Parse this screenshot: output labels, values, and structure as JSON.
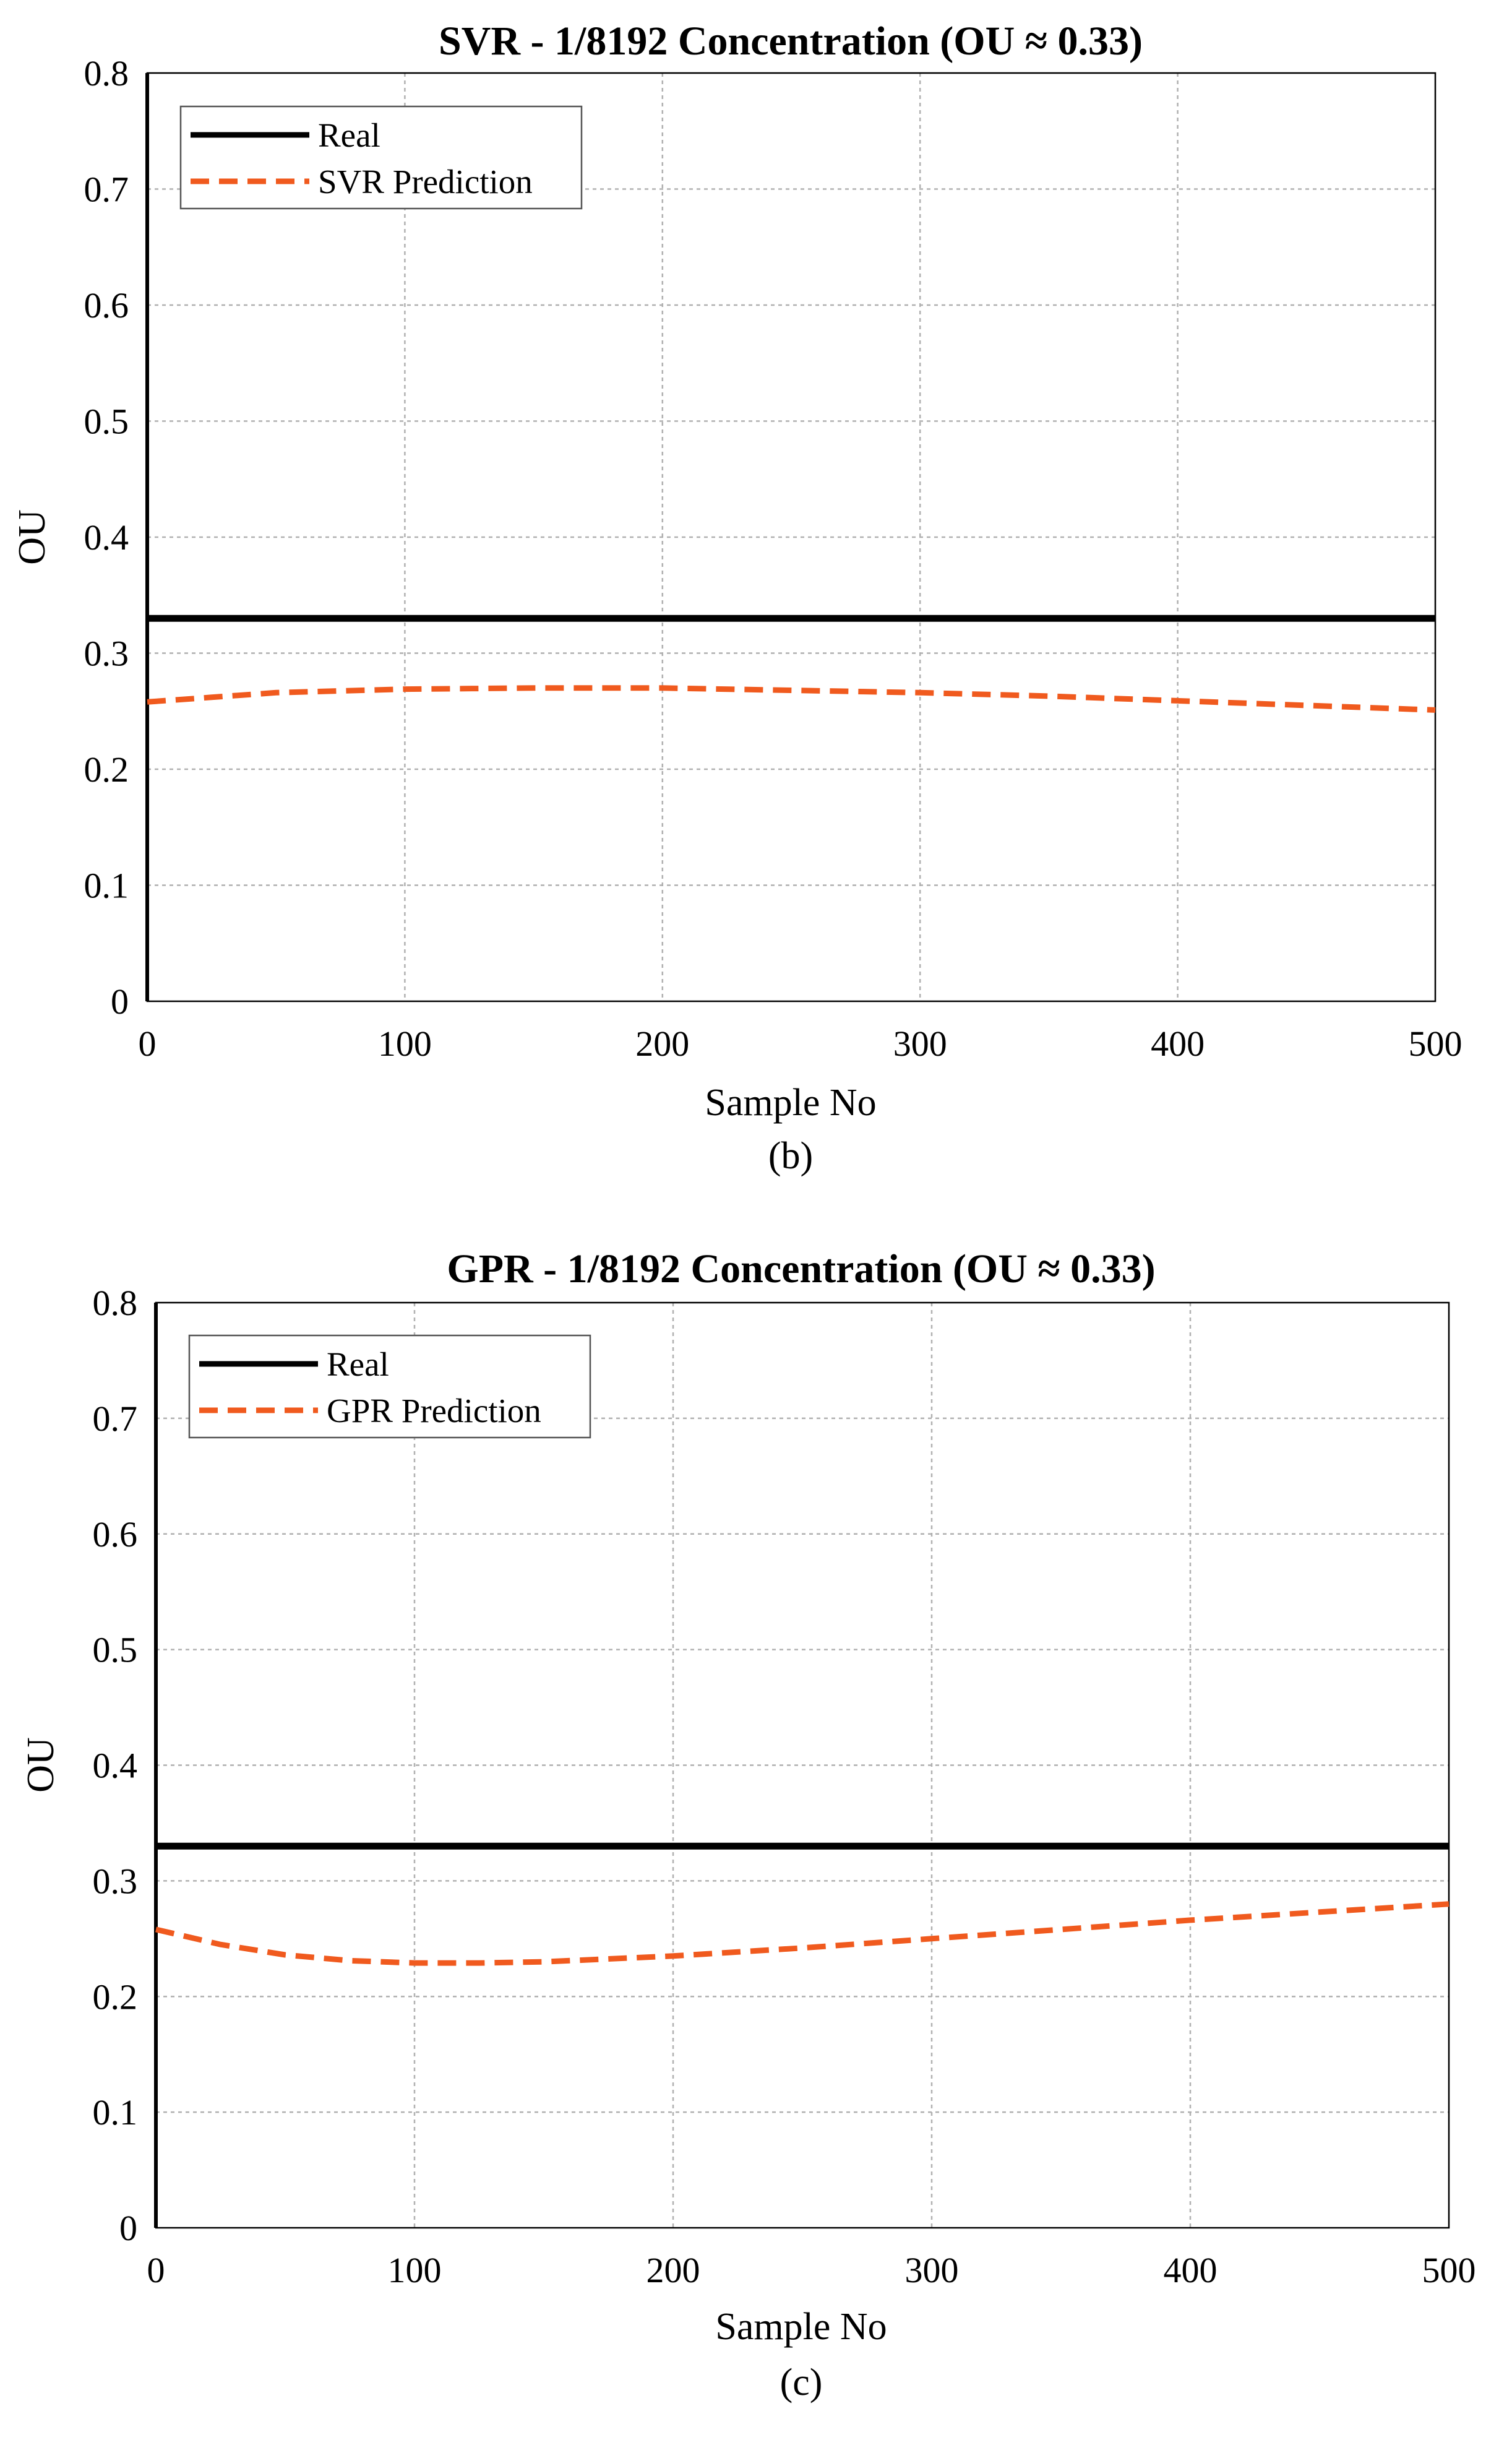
{
  "colors": {
    "real": "#000000",
    "prediction": "#f05a1e"
  },
  "chart_data": [
    {
      "type": "line",
      "title": "SVR - 1/8192 Concentration (OU ≈ 0.33)",
      "xlabel": "Sample No",
      "ylabel": "OU",
      "sublabel": "(b)",
      "xlim": [
        0,
        500
      ],
      "ylim": [
        0,
        0.8
      ],
      "xticks": [
        0,
        100,
        200,
        300,
        400,
        500
      ],
      "yticks": [
        0,
        0.1,
        0.2,
        0.3,
        0.4,
        0.5,
        0.6,
        0.7,
        0.8
      ],
      "ytick_labels": [
        "0",
        "0.1",
        "0.2",
        "0.3",
        "0.4",
        "0.5",
        "0.6",
        "0.7",
        "0.8"
      ],
      "grid": true,
      "legend_position": "top-left",
      "series": [
        {
          "name": "Real",
          "style": "solid",
          "color": "#000000",
          "x": [
            0,
            500
          ],
          "y": [
            0.33,
            0.33
          ]
        },
        {
          "name": "SVR Prediction",
          "style": "dashed",
          "color": "#f05a1e",
          "x": [
            0,
            25,
            50,
            100,
            150,
            200,
            250,
            300,
            350,
            400,
            450,
            500
          ],
          "y": [
            0.258,
            0.262,
            0.266,
            0.269,
            0.27,
            0.27,
            0.268,
            0.266,
            0.263,
            0.259,
            0.255,
            0.251
          ]
        }
      ]
    },
    {
      "type": "line",
      "title": "GPR - 1/8192 Concentration (OU ≈ 0.33)",
      "xlabel": "Sample No",
      "ylabel": "OU",
      "sublabel": "(c)",
      "xlim": [
        0,
        500
      ],
      "ylim": [
        0,
        0.8
      ],
      "xticks": [
        0,
        100,
        200,
        300,
        400,
        500
      ],
      "yticks": [
        0,
        0.1,
        0.2,
        0.3,
        0.4,
        0.5,
        0.6,
        0.7,
        0.8
      ],
      "ytick_labels": [
        "0",
        "0.1",
        "0.2",
        "0.3",
        "0.4",
        "0.5",
        "0.6",
        "0.7",
        "0.8"
      ],
      "grid": true,
      "legend_position": "top-left",
      "series": [
        {
          "name": "Real",
          "style": "solid",
          "color": "#000000",
          "x": [
            0,
            500
          ],
          "y": [
            0.33,
            0.33
          ]
        },
        {
          "name": "GPR Prediction",
          "style": "dashed",
          "color": "#f05a1e",
          "x": [
            0,
            25,
            50,
            75,
            100,
            125,
            150,
            200,
            250,
            300,
            350,
            400,
            450,
            500
          ],
          "y": [
            0.258,
            0.245,
            0.236,
            0.231,
            0.229,
            0.229,
            0.23,
            0.235,
            0.242,
            0.25,
            0.258,
            0.266,
            0.273,
            0.28
          ]
        }
      ]
    }
  ]
}
